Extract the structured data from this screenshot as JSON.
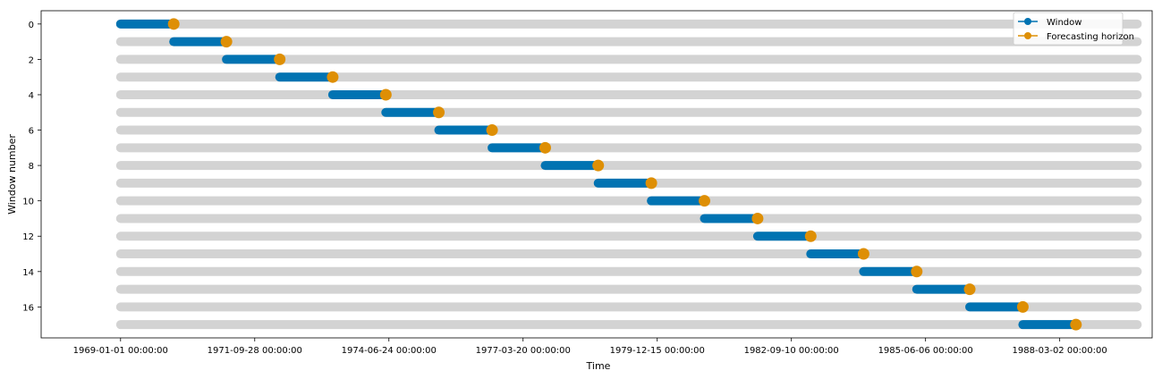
{
  "chart_data": {
    "type": "timeline",
    "xlabel": "Time",
    "ylabel": "Window number",
    "x_tick_labels": [
      "1969-01-01 00:00:00",
      "1971-09-28 00:00:00",
      "1974-06-24 00:00:00",
      "1977-03-20 00:00:00",
      "1979-12-15 00:00:00",
      "1982-09-10 00:00:00",
      "1985-06-06 00:00:00",
      "1988-03-02 00:00:00"
    ],
    "y_tick_labels": [
      "0",
      "2",
      "4",
      "6",
      "8",
      "10",
      "12",
      "14",
      "16"
    ],
    "y_tick_values": [
      0,
      2,
      4,
      6,
      8,
      10,
      12,
      14,
      16
    ],
    "xlim": [
      "1967-05-20",
      "1990-01-20"
    ],
    "ylim": [
      17.75,
      -0.75
    ],
    "full_range": [
      "1969-01-01",
      "1989-10-01"
    ],
    "windows": [
      {
        "window": 0,
        "start": "1969-01-01",
        "end": "1970-01-01",
        "forecast": "1970-02-01"
      },
      {
        "window": 1,
        "start": "1970-02-01",
        "end": "1971-02-01",
        "forecast": "1971-03-01"
      },
      {
        "window": 2,
        "start": "1971-03-01",
        "end": "1972-03-01",
        "forecast": "1972-04-01"
      },
      {
        "window": 3,
        "start": "1972-04-01",
        "end": "1973-04-01",
        "forecast": "1973-05-01"
      },
      {
        "window": 4,
        "start": "1973-05-01",
        "end": "1974-05-01",
        "forecast": "1974-06-01"
      },
      {
        "window": 5,
        "start": "1974-06-01",
        "end": "1975-06-01",
        "forecast": "1975-07-01"
      },
      {
        "window": 6,
        "start": "1975-07-01",
        "end": "1976-07-01",
        "forecast": "1976-08-01"
      },
      {
        "window": 7,
        "start": "1976-08-01",
        "end": "1977-08-01",
        "forecast": "1977-09-01"
      },
      {
        "window": 8,
        "start": "1977-09-01",
        "end": "1978-09-01",
        "forecast": "1978-10-01"
      },
      {
        "window": 9,
        "start": "1978-10-01",
        "end": "1979-10-01",
        "forecast": "1979-11-01"
      },
      {
        "window": 10,
        "start": "1979-11-01",
        "end": "1980-11-01",
        "forecast": "1980-12-01"
      },
      {
        "window": 11,
        "start": "1980-12-01",
        "end": "1981-12-01",
        "forecast": "1982-01-01"
      },
      {
        "window": 12,
        "start": "1982-01-01",
        "end": "1983-01-01",
        "forecast": "1983-02-01"
      },
      {
        "window": 13,
        "start": "1983-02-01",
        "end": "1984-02-01",
        "forecast": "1984-03-01"
      },
      {
        "window": 14,
        "start": "1984-03-01",
        "end": "1985-03-01",
        "forecast": "1985-04-01"
      },
      {
        "window": 15,
        "start": "1985-04-01",
        "end": "1986-04-01",
        "forecast": "1986-05-01"
      },
      {
        "window": 16,
        "start": "1986-05-01",
        "end": "1987-05-01",
        "forecast": "1987-06-01"
      },
      {
        "window": 17,
        "start": "1987-06-01",
        "end": "1988-06-01",
        "forecast": "1988-07-01"
      }
    ],
    "legend": {
      "placement": "top-right",
      "entries": [
        {
          "label": "Window",
          "color": "#0173b2"
        },
        {
          "label": "Forecasting horizon",
          "color": "#de8f05"
        }
      ]
    },
    "colors": {
      "background_bar": "#d3d3d3",
      "window": "#0173b2",
      "forecast": "#de8f05"
    },
    "grid": false
  }
}
